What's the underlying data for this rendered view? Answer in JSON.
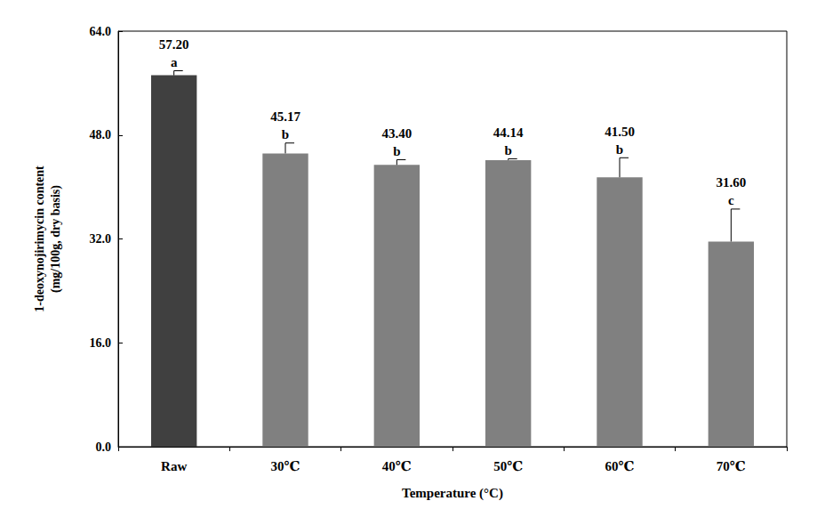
{
  "chart_data": {
    "type": "bar",
    "x_label": "Temperature (°C)",
    "y_label": "1-deoxynojirimycin content\n(mg/100g, dry basis)",
    "categories": [
      "Raw",
      "30℃",
      "40℃",
      "50℃",
      "60℃",
      "70℃"
    ],
    "values": [
      57.2,
      45.17,
      43.4,
      44.14,
      41.5,
      31.6
    ],
    "value_labels": [
      "57.20",
      "45.17",
      "43.40",
      "44.14",
      "41.50",
      "31.60"
    ],
    "errors": [
      0.7,
      1.6,
      0.8,
      0.2,
      3.0,
      5.0
    ],
    "letters": [
      "a",
      "b",
      "b",
      "b",
      "b",
      "c"
    ],
    "colors": [
      "#404040",
      "#808080",
      "#808080",
      "#808080",
      "#808080",
      "#808080"
    ],
    "ylim": [
      0,
      64
    ],
    "yticks": [
      {
        "value": 0,
        "label": "0.0"
      },
      {
        "value": 16,
        "label": "16.0"
      },
      {
        "value": 32,
        "label": "32.0"
      },
      {
        "value": 48,
        "label": "48.0"
      },
      {
        "value": 64,
        "label": "64.0"
      }
    ],
    "grid": false,
    "data_labels": true
  }
}
